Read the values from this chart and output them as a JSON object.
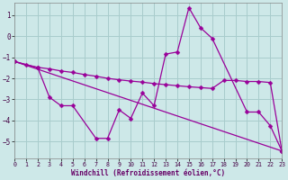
{
  "xlabel": "Windchill (Refroidissement éolien,°C)",
  "xlim": [
    0,
    23
  ],
  "ylim": [
    -5.8,
    1.6
  ],
  "yticks": [
    1,
    0,
    -1,
    -2,
    -3,
    -4,
    -5
  ],
  "xticks": [
    0,
    1,
    2,
    3,
    4,
    5,
    6,
    7,
    8,
    9,
    10,
    11,
    12,
    13,
    14,
    15,
    16,
    17,
    18,
    19,
    20,
    21,
    22,
    23
  ],
  "background_color": "#cde8e8",
  "grid_color": "#a8cccc",
  "line_color": "#990099",
  "line1_x": [
    0,
    2,
    3,
    4,
    5,
    7,
    8,
    9,
    10,
    11,
    12,
    13,
    14,
    15,
    16,
    17,
    20,
    21,
    22,
    23
  ],
  "line1_y": [
    -1.2,
    -1.5,
    -2.9,
    -3.3,
    -3.3,
    -4.85,
    -4.85,
    -3.5,
    -3.9,
    -2.7,
    -3.3,
    -0.85,
    -0.75,
    1.35,
    0.4,
    -0.1,
    -3.6,
    -3.6,
    -4.25,
    -5.45
  ],
  "line2_x": [
    0,
    1,
    2,
    3,
    4,
    5,
    6,
    7,
    8,
    9,
    10,
    11,
    12,
    13,
    14,
    15,
    16,
    17,
    18,
    19,
    20,
    21,
    22,
    23
  ],
  "line2_y": [
    -1.2,
    -1.35,
    -1.48,
    -1.55,
    -1.65,
    -1.72,
    -1.82,
    -1.9,
    -2.0,
    -2.07,
    -2.13,
    -2.18,
    -2.25,
    -2.3,
    -2.35,
    -2.4,
    -2.44,
    -2.48,
    -2.1,
    -2.1,
    -2.15,
    -2.15,
    -2.2,
    -5.45
  ],
  "line3_x": [
    0,
    23
  ],
  "line3_y": [
    -1.2,
    -5.45
  ]
}
